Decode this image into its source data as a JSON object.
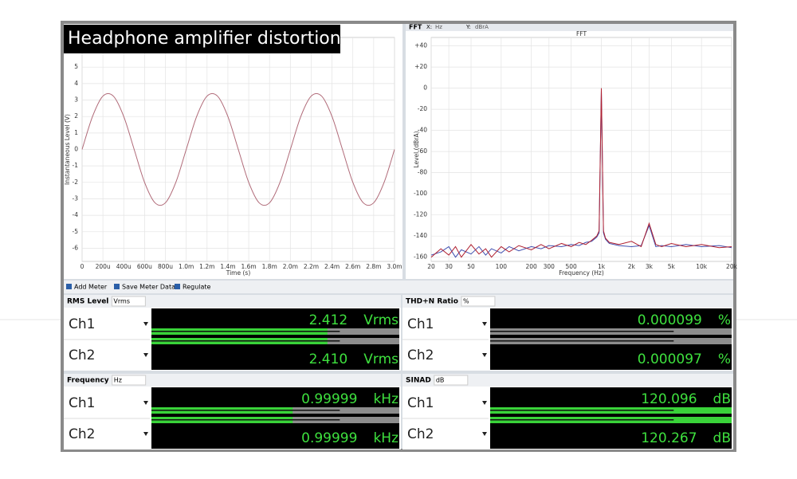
{
  "title": "Headphone amplifier distortion",
  "fft_header": {
    "name": "FFT",
    "x_label": "X:",
    "x_unit": "Hz",
    "y_label": "Y:",
    "y_unit": "dBrA"
  },
  "chart_data": [
    {
      "type": "line",
      "x_label": "Time (s)",
      "y_label": "Instantaneous Level (V)",
      "x": [
        0,
        0.0001,
        0.0002,
        0.0003,
        0.0004,
        0.0005,
        0.0006,
        0.0007,
        0.0008,
        0.0009,
        0.001,
        0.0011,
        0.0012,
        0.0013,
        0.0014,
        0.0015,
        0.0016,
        0.0017,
        0.0018,
        0.0019,
        0.002,
        0.0021,
        0.0022,
        0.0023,
        0.0024,
        0.0025,
        0.0026,
        0.0027,
        0.0028,
        0.0029,
        0.003
      ],
      "series": [
        {
          "color": "#b06a78",
          "values": [
            0,
            2.0,
            3.24,
            3.24,
            2.0,
            0,
            -2.0,
            -3.24,
            -3.24,
            -2.0,
            0,
            2.0,
            3.24,
            3.24,
            2.0,
            0,
            -2.0,
            -3.24,
            -3.24,
            -2.0,
            0,
            2.0,
            3.24,
            3.24,
            2.0,
            0,
            -2.0,
            -3.24,
            -3.24,
            -2.0,
            0
          ]
        }
      ],
      "xlim": [
        0,
        0.003
      ],
      "ylim": [
        -6.8,
        6.8
      ],
      "xticks": [
        0,
        {
          "value": 0.0002,
          "label": "200u"
        },
        {
          "value": 0.0004,
          "label": "400u"
        },
        {
          "value": 0.0006,
          "label": "600u"
        },
        {
          "value": 0.0008,
          "label": "800u"
        },
        {
          "value": 0.001,
          "label": "1.0m"
        },
        {
          "value": 0.0012,
          "label": "1.2m"
        },
        {
          "value": 0.0014,
          "label": "1.4m"
        },
        {
          "value": 0.0016,
          "label": "1.6m"
        },
        {
          "value": 0.0018,
          "label": "1.8m"
        },
        {
          "value": 0.002,
          "label": "2.0m"
        },
        {
          "value": 0.0022,
          "label": "2.2m"
        },
        {
          "value": 0.0024,
          "label": "2.4m"
        },
        {
          "value": 0.0026,
          "label": "2.6m"
        },
        {
          "value": 0.0028,
          "label": "2.8m"
        },
        {
          "value": 0.003,
          "label": "3.0m"
        }
      ],
      "yticks": [
        -6,
        -5,
        -4,
        -3,
        -2,
        -1,
        0,
        1,
        2,
        3,
        4,
        5
      ],
      "grid": true
    },
    {
      "type": "line",
      "title": "FFT",
      "x_label": "Frequency (Hz)",
      "y_label": "Level (dBrA)",
      "log_x": true,
      "x": [
        20,
        25,
        30,
        35,
        40,
        50,
        60,
        70,
        80,
        100,
        120,
        150,
        200,
        250,
        300,
        400,
        500,
        600,
        700,
        800,
        900,
        950,
        1000,
        1050,
        1100,
        1200,
        1500,
        2000,
        2500,
        3000,
        3500,
        4000,
        5000,
        7000,
        10000,
        15000,
        20000
      ],
      "series": [
        {
          "color": "#4050b0",
          "values": [
            -158,
            -155,
            -150,
            -160,
            -153,
            -157,
            -150,
            -158,
            -152,
            -156,
            -150,
            -154,
            -150,
            -152,
            -149,
            -150,
            -148,
            -149,
            -146,
            -145,
            -141,
            -137,
            -2,
            -137,
            -143,
            -147,
            -149,
            -150,
            -149,
            -130,
            -150,
            -149,
            -150,
            -148,
            -150,
            -149,
            -151
          ]
        },
        {
          "color": "#b02030",
          "values": [
            -160,
            -152,
            -158,
            -150,
            -160,
            -148,
            -157,
            -152,
            -160,
            -150,
            -155,
            -149,
            -153,
            -148,
            -152,
            -147,
            -150,
            -146,
            -148,
            -144,
            -140,
            -135,
            0,
            -135,
            -142,
            -146,
            -148,
            -145,
            -150,
            -128,
            -148,
            -150,
            -147,
            -150,
            -148,
            -151,
            -150
          ]
        }
      ],
      "xlim": [
        20,
        20000
      ],
      "ylim": [
        -164,
        48
      ],
      "xticks": [
        20,
        30,
        50,
        100,
        200,
        300,
        500,
        {
          "value": 1000,
          "label": "1k"
        },
        {
          "value": 2000,
          "label": "2k"
        },
        {
          "value": 3000,
          "label": "3k"
        },
        {
          "value": 5000,
          "label": "5k"
        },
        {
          "value": 10000,
          "label": "10k"
        },
        {
          "value": 20000,
          "label": "20k"
        }
      ],
      "yticks": [
        {
          "value": 40,
          "label": "+40"
        },
        {
          "value": 20,
          "label": "+20"
        },
        0,
        -20,
        -40,
        -60,
        -80,
        -100,
        -120,
        -140,
        -160
      ],
      "grid": true
    }
  ],
  "toolbar": [
    "Add Meter",
    "Save Meter Data",
    "Regulate"
  ],
  "meters": [
    {
      "title": "RMS Level",
      "unit": "Vrms",
      "rows": [
        {
          "channel": "Ch1",
          "value": "2.412",
          "unit": "Vrms"
        },
        {
          "channel": "Ch2",
          "value": "2.410",
          "unit": "Vrms"
        }
      ]
    },
    {
      "title": "THD+N Ratio",
      "unit": "%",
      "rows": [
        {
          "channel": "Ch1",
          "value": "0.000099",
          "unit": "%"
        },
        {
          "channel": "Ch2",
          "value": "0.000097",
          "unit": "%"
        }
      ]
    },
    {
      "title": "Frequency",
      "unit": "Hz",
      "rows": [
        {
          "channel": "Ch1",
          "value": "0.99999",
          "unit": "kHz"
        },
        {
          "channel": "Ch2",
          "value": "0.99999",
          "unit": "kHz"
        }
      ]
    },
    {
      "title": "SINAD",
      "unit": "dB",
      "rows": [
        {
          "channel": "Ch1",
          "value": "120.096",
          "unit": "dB"
        },
        {
          "channel": "Ch2",
          "value": "120.267",
          "unit": "dB"
        }
      ]
    }
  ]
}
